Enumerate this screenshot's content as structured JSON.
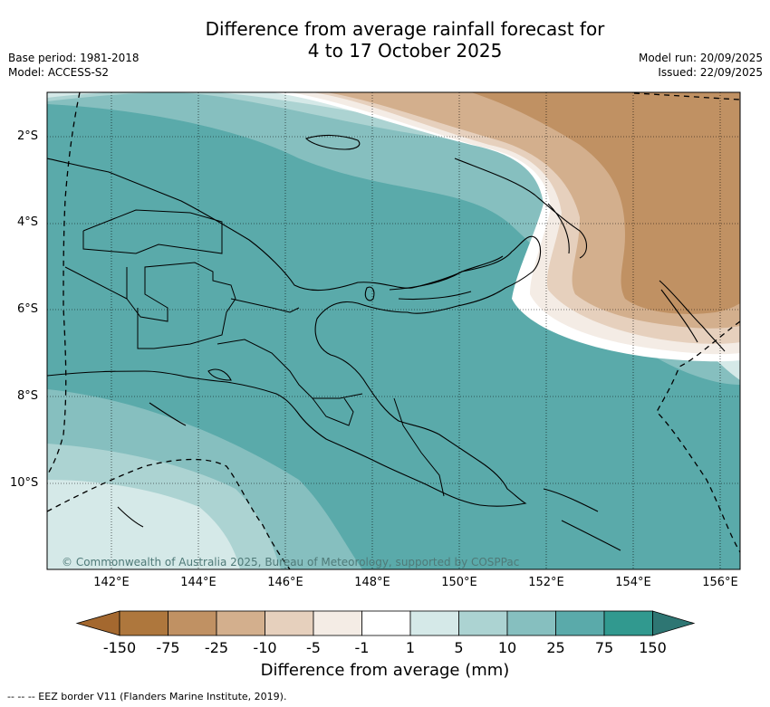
{
  "title": {
    "line1": "Difference from average rainfall forecast for",
    "line2": "4 to 17 October 2025"
  },
  "meta": {
    "base_period": "Base period: 1981-2018",
    "model": "Model: ACCESS-S2",
    "model_run": "Model run: 20/09/2025",
    "issued": "Issued: 22/09/2025"
  },
  "map": {
    "lat_labels": [
      "2°S",
      "4°S",
      "6°S",
      "8°S",
      "10°S"
    ],
    "lon_labels": [
      "142°E",
      "144°E",
      "146°E",
      "148°E",
      "150°E",
      "152°E",
      "154°E",
      "156°E"
    ],
    "credit": "© Commonwealth of Australia 2025, Bureau of Meteorology, supported by COSPPac"
  },
  "colorbar": {
    "title": "Difference from average (mm)",
    "labels": [
      "-150",
      "-75",
      "-25",
      "-10",
      "-5",
      "-1",
      "1",
      "5",
      "10",
      "25",
      "75",
      "150"
    ],
    "colors": {
      "below_min": "#a4682f",
      "bins": [
        "#ae773d",
        "#c09163",
        "#d3af8d",
        "#e6d0bd",
        "#f4ece5",
        "#ffffff",
        "#d5e9e8",
        "#acd3d2",
        "#86bfbf",
        "#5aaaaa",
        "#31998f"
      ],
      "above_max": "#2e7673"
    }
  },
  "footnote": "-- --  -- EEZ border V11 (Flanders Marine Institute, 2019)."
}
